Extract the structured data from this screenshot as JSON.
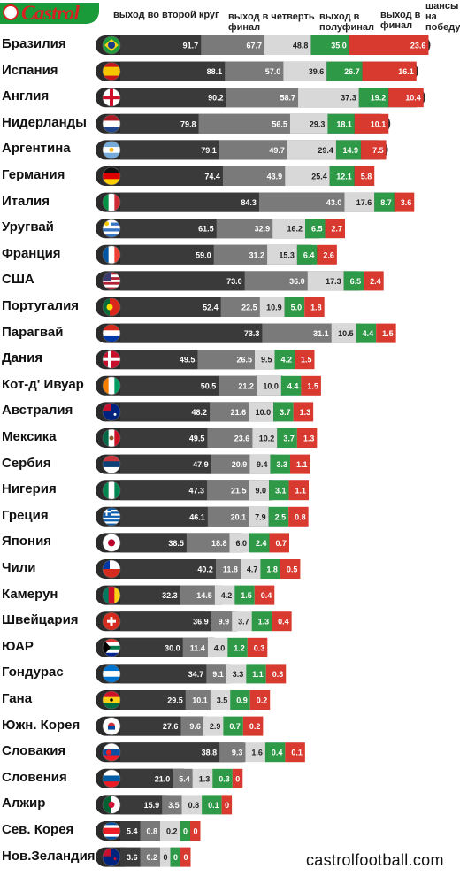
{
  "brand": "Castrol",
  "footer": "castrolfootball.com",
  "colors": {
    "stage1": "#3a3a3a",
    "stage2": "#7a7a7a",
    "stage3": "#d8d8d8",
    "stage4": "#2e9a48",
    "stage5": "#d83a30",
    "track": "#2b2b2b"
  },
  "chart_data": {
    "type": "bar",
    "title": "",
    "xlabel": "",
    "ylabel": "",
    "xlim": [
      0,
      100
    ],
    "stages": [
      "выход во второй круг",
      "выход в четверть финал",
      "выход в полуфинал",
      "выход в финал",
      "шансы на победу"
    ],
    "categories": [
      "Бразилия",
      "Испания",
      "Англия",
      "Нидерланды",
      "Аргентина",
      "Германия",
      "Италия",
      "Уругвай",
      "Франция",
      "США",
      "Португалия",
      "Парагвай",
      "Дания",
      "Кот-д' Ивуар",
      "Австралия",
      "Мексика",
      "Сербия",
      "Нигерия",
      "Греция",
      "Япония",
      "Чили",
      "Камерун",
      "Швейцария",
      "ЮАР",
      "Гондурас",
      "Гана",
      "Южн. Корея",
      "Словакия",
      "Словения",
      "Алжир",
      "Сев. Корея",
      "Нов.Зеландия"
    ],
    "series": [
      {
        "name": "выход во второй круг",
        "values": [
          91.7,
          88.1,
          90.2,
          79.8,
          79.1,
          74.4,
          84.3,
          61.5,
          59.0,
          73.0,
          52.4,
          73.3,
          49.5,
          50.5,
          48.2,
          49.5,
          47.9,
          47.3,
          46.1,
          38.5,
          40.2,
          32.3,
          36.9,
          30.0,
          34.7,
          29.5,
          27.6,
          38.8,
          21.0,
          15.9,
          5.4,
          3.6
        ]
      },
      {
        "name": "выход в четверть финал",
        "values": [
          67.7,
          57.0,
          58.7,
          56.5,
          49.7,
          43.9,
          43.0,
          32.9,
          31.2,
          36.0,
          22.5,
          31.1,
          26.5,
          21.2,
          21.6,
          23.6,
          20.9,
          21.5,
          20.1,
          18.8,
          11.8,
          14.5,
          9.9,
          11.4,
          9.1,
          10.1,
          9.6,
          9.3,
          5.4,
          3.5,
          0.8,
          0.2
        ]
      },
      {
        "name": "выход в полуфинал",
        "values": [
          48.8,
          39.6,
          37.3,
          29.3,
          29.4,
          25.4,
          17.6,
          16.2,
          15.3,
          17.3,
          10.9,
          10.5,
          9.5,
          10.0,
          10.0,
          10.2,
          9.4,
          9.0,
          7.9,
          6.0,
          4.7,
          4.2,
          3.7,
          4.0,
          3.3,
          3.5,
          2.9,
          1.6,
          1.3,
          0.8,
          0.2,
          0
        ]
      },
      {
        "name": "выход в финал",
        "values": [
          35.0,
          26.7,
          19.2,
          18.1,
          14.9,
          12.1,
          8.7,
          6.5,
          6.4,
          6.5,
          5.0,
          4.4,
          4.2,
          4.4,
          3.7,
          3.7,
          3.3,
          3.1,
          2.5,
          2.4,
          1.8,
          1.5,
          1.3,
          1.2,
          1.1,
          0.9,
          0.7,
          0.4,
          0.3,
          0.1,
          0,
          0
        ]
      },
      {
        "name": "шансы на победу",
        "values": [
          23.6,
          16.1,
          10.4,
          10.1,
          7.5,
          5.8,
          3.6,
          2.7,
          2.6,
          2.4,
          1.8,
          1.5,
          1.5,
          1.5,
          1.3,
          1.3,
          1.1,
          1.1,
          0.8,
          0.7,
          0.5,
          0.4,
          0.4,
          0.3,
          0.3,
          0.2,
          0.2,
          0.1,
          0,
          0,
          0,
          0
        ]
      }
    ],
    "label_text": [
      [
        "91.7",
        "67.7",
        "48.8",
        "35.0",
        "23.6"
      ],
      [
        "88.1",
        "57.0",
        "39.6",
        "26.7",
        "16.1"
      ],
      [
        "90.2",
        "58.7",
        "37.3",
        "19.2",
        "10.4"
      ],
      [
        "79.8",
        "56.5",
        "29.3",
        "18.1",
        "10.1"
      ],
      [
        "79.1",
        "49.7",
        "29.4",
        "14.9",
        "7.5"
      ],
      [
        "74.4",
        "43.9",
        "25.4",
        "12.1",
        "5.8"
      ],
      [
        "84.3",
        "43.0",
        "17.6",
        "8.7",
        "3.6"
      ],
      [
        "61.5",
        "32.9",
        "16.2",
        "6.5",
        "2.7"
      ],
      [
        "59.0",
        "31.2",
        "15.3",
        "6.4",
        "2.6"
      ],
      [
        "73.0",
        "36.0",
        "17.3",
        "6.5",
        "2.4"
      ],
      [
        "52.4",
        "22.5",
        "10.9",
        "5.0",
        "1.8"
      ],
      [
        "73.3",
        "31.1",
        "10.5",
        "4.4",
        "1.5"
      ],
      [
        "49.5",
        "26.5",
        "9.5",
        "4.2",
        "1.5"
      ],
      [
        "50.5",
        "21.2",
        "10.0",
        "4.4",
        "1.5"
      ],
      [
        "48.2",
        "21.6",
        "10.0",
        "3.7",
        "1.3"
      ],
      [
        "49.5",
        "23.6",
        "10.2",
        "3.7",
        "1.3"
      ],
      [
        "47.9",
        "20.9",
        "9.4",
        "3.3",
        "1.1"
      ],
      [
        "47.3",
        "21.5",
        "9.0",
        "3.1",
        "1.1"
      ],
      [
        "46.1",
        "20.1",
        "7.9",
        "2.5",
        "0.8"
      ],
      [
        "38.5",
        "18.8",
        "6.0",
        "2.4",
        "0.7"
      ],
      [
        "40.2",
        "11.8",
        "4.7",
        "1.8",
        "0.5"
      ],
      [
        "32.3",
        "14.5",
        "4.2",
        "1.5",
        "0.4"
      ],
      [
        "36.9",
        "9.9",
        "3.7",
        "1.3",
        "0.4"
      ],
      [
        "30.0",
        "11.4",
        "4.0",
        "1.2",
        "0.3"
      ],
      [
        "34.7",
        "9.1",
        "3.3",
        "1.1",
        "0.3"
      ],
      [
        "29.5",
        "10.1",
        "3.5",
        "0.9",
        "0.2"
      ],
      [
        "27.6",
        "9.6",
        "2.9",
        "0.7",
        "0.2"
      ],
      [
        "38.8",
        "9.3",
        "1.6",
        "0.4",
        "0.1"
      ],
      [
        "21.0",
        "5.4",
        "1.3",
        "0.3",
        "0"
      ],
      [
        "15.9",
        "3.5",
        "0.8",
        "0.1",
        "0"
      ],
      [
        "5.4",
        "0.8",
        "0.2",
        "0",
        "0"
      ],
      [
        "3.6",
        "0.2",
        "0",
        "0",
        "0"
      ]
    ],
    "flags": [
      "brazil",
      "spain",
      "england",
      "netherlands",
      "argentina",
      "germany",
      "italy",
      "uruguay",
      "france",
      "usa",
      "portugal",
      "paraguay",
      "denmark",
      "ivory-coast",
      "australia",
      "mexico",
      "serbia",
      "nigeria",
      "greece",
      "japan",
      "chile",
      "cameroon",
      "switzerland",
      "south-africa",
      "honduras",
      "ghana",
      "south-korea",
      "slovakia",
      "slovenia",
      "algeria",
      "north-korea",
      "new-zealand"
    ],
    "legend_position": "top",
    "grid": false
  }
}
